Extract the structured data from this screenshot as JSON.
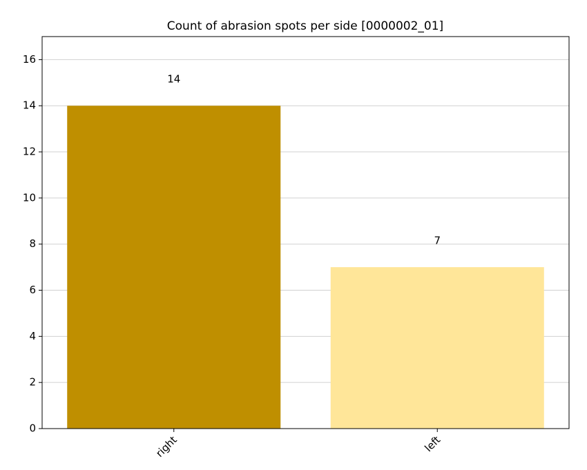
{
  "chart_data": {
    "type": "bar",
    "title": "Count of abrasion spots per side [0000002_01]",
    "categories": [
      "right",
      "left"
    ],
    "values": [
      14,
      7
    ],
    "colors": [
      "#bf8f00",
      "#ffe699"
    ],
    "ylim": [
      0,
      17
    ],
    "yticks": [
      0,
      2,
      4,
      6,
      8,
      10,
      12,
      14,
      16
    ],
    "grid": true
  }
}
